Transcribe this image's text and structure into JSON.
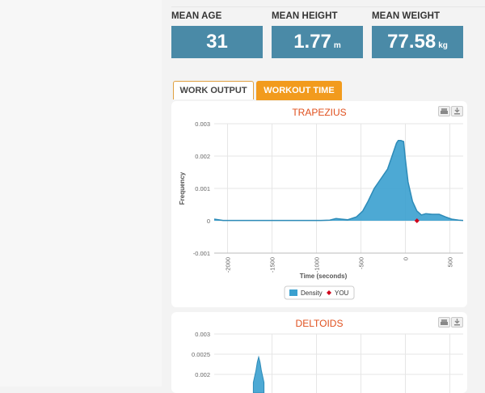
{
  "stats": [
    {
      "label": "MEAN AGE",
      "value": "31",
      "unit": ""
    },
    {
      "label": "MEAN HEIGHT",
      "value": "1.77",
      "unit": "m"
    },
    {
      "label": "MEAN WEIGHT",
      "value": "77.58",
      "unit": "kg"
    }
  ],
  "tabs": [
    {
      "label": "WORK OUTPUT",
      "active": true
    },
    {
      "label": "WORKOUT TIME",
      "active": false
    }
  ],
  "colors": {
    "accent": "#4a8aa7",
    "tab_active": "#f29b1d",
    "title": "#e0501e",
    "density_fill": "#3aa0cf",
    "you_marker": "#d0021b"
  },
  "icons": {
    "print": "print-icon",
    "export": "download-icon"
  },
  "chart_data": [
    {
      "type": "area",
      "title": "TRAPEZIUS",
      "xlabel": "Time (seconds)",
      "ylabel": "Frequency",
      "xlim": [
        -2150,
        650
      ],
      "ylim": [
        -0.001,
        0.003
      ],
      "x_ticks": [
        "-2000",
        "-1500",
        "-1000",
        "-500",
        "0",
        "500"
      ],
      "y_ticks": [
        "-0.001",
        "0",
        "0.001",
        "0.002",
        "0.003"
      ],
      "grid": true,
      "legend": "bottom-center",
      "series": [
        {
          "name": "Density",
          "type": "area",
          "x": [
            -2150,
            -2050,
            -1900,
            -1700,
            -1500,
            -1300,
            -1100,
            -950,
            -850,
            -780,
            -720,
            -650,
            -550,
            -480,
            -420,
            -350,
            -300,
            -250,
            -200,
            -150,
            -100,
            -80,
            -50,
            -20,
            0,
            30,
            80,
            130,
            180,
            230,
            300,
            380,
            450,
            520,
            600,
            650
          ],
          "y": [
            5e-05,
            1e-05,
            1e-05,
            1e-05,
            1e-05,
            1e-05,
            1e-05,
            1e-05,
            2e-05,
            7e-05,
            5e-05,
            3e-05,
            0.00012,
            0.0003,
            0.0006,
            0.001,
            0.0012,
            0.0014,
            0.0016,
            0.002,
            0.0024,
            0.00248,
            0.00248,
            0.00245,
            0.0019,
            0.0012,
            0.0006,
            0.0003,
            0.00018,
            0.00022,
            0.0002,
            0.0002,
            0.00012,
            5e-05,
            2e-05,
            1e-05
          ]
        },
        {
          "name": "YOU",
          "type": "scatter",
          "x": [
            130
          ],
          "y": [
            0
          ]
        }
      ]
    },
    {
      "type": "area",
      "title": "DELTOIDS",
      "y_ticks": [
        "0.003",
        "0.0025",
        "0.002"
      ],
      "ylim": [
        0.0018,
        0.003
      ],
      "xlim": [
        -2150,
        650
      ],
      "grid": true,
      "series": [
        {
          "name": "Density",
          "type": "area",
          "x": [
            -1710,
            -1680,
            -1665,
            -1650,
            -1635,
            -1620,
            -1590
          ],
          "y": [
            0.0018,
            0.0021,
            0.0023,
            0.00243,
            0.0023,
            0.0021,
            0.0018
          ]
        }
      ]
    }
  ]
}
